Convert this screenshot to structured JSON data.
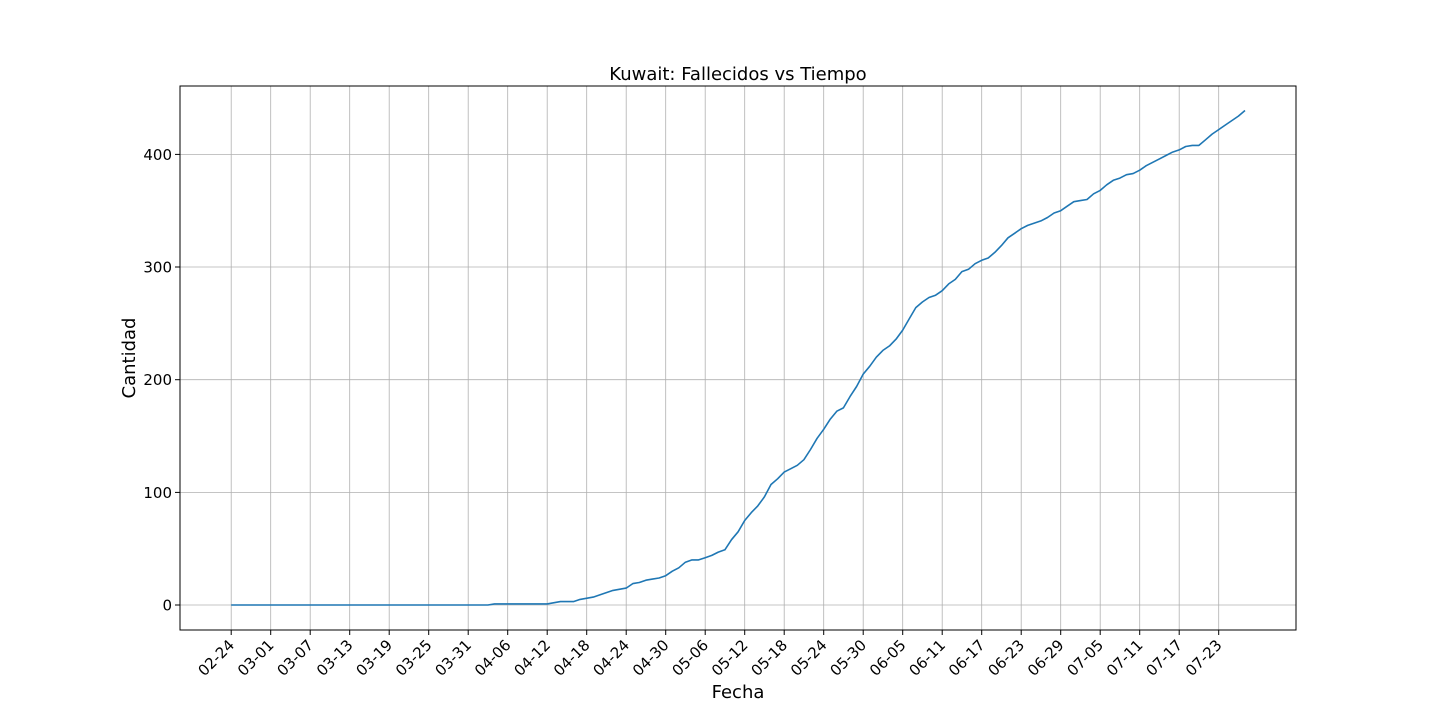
{
  "chart_data": {
    "type": "line",
    "title": "Kuwait: Fallecidos vs Tiempo",
    "xlabel": "Fecha",
    "ylabel": "Cantidad",
    "ylim": [
      -22,
      460
    ],
    "yticks": [
      0,
      100,
      200,
      300,
      400
    ],
    "x_start": "02-24",
    "xticks": [
      "02-24",
      "03-01",
      "03-07",
      "03-13",
      "03-19",
      "03-25",
      "03-31",
      "04-06",
      "04-12",
      "04-18",
      "04-24",
      "04-30",
      "05-06",
      "05-12",
      "05-18",
      "05-24",
      "05-30",
      "06-05",
      "06-11",
      "06-17",
      "06-23",
      "06-29",
      "07-05",
      "07-11",
      "07-17",
      "07-23"
    ],
    "grid": true,
    "series": [
      {
        "color": "#1f77b4",
        "points": [
          [
            "02-24",
            0
          ],
          [
            "04-03",
            0
          ],
          [
            "04-04",
            1
          ],
          [
            "04-12",
            1
          ],
          [
            "04-14",
            3
          ],
          [
            "04-16",
            3
          ],
          [
            "04-17",
            5
          ],
          [
            "04-19",
            7
          ],
          [
            "04-20",
            9
          ],
          [
            "04-22",
            13
          ],
          [
            "04-24",
            15
          ],
          [
            "04-25",
            19
          ],
          [
            "04-26",
            20
          ],
          [
            "04-27",
            22
          ],
          [
            "04-28",
            23
          ],
          [
            "04-29",
            24
          ],
          [
            "04-30",
            26
          ],
          [
            "05-01",
            30
          ],
          [
            "05-02",
            33
          ],
          [
            "05-03",
            38
          ],
          [
            "05-04",
            40
          ],
          [
            "05-05",
            40
          ],
          [
            "05-06",
            42
          ],
          [
            "05-07",
            44
          ],
          [
            "05-08",
            47
          ],
          [
            "05-09",
            49
          ],
          [
            "05-10",
            58
          ],
          [
            "05-11",
            65
          ],
          [
            "05-12",
            75
          ],
          [
            "05-13",
            82
          ],
          [
            "05-14",
            88
          ],
          [
            "05-15",
            96
          ],
          [
            "05-16",
            107
          ],
          [
            "05-17",
            112
          ],
          [
            "05-18",
            118
          ],
          [
            "05-19",
            121
          ],
          [
            "05-20",
            124
          ],
          [
            "05-21",
            129
          ],
          [
            "05-22",
            138
          ],
          [
            "05-23",
            148
          ],
          [
            "05-24",
            156
          ],
          [
            "05-25",
            165
          ],
          [
            "05-26",
            172
          ],
          [
            "05-27",
            175
          ],
          [
            "05-28",
            185
          ],
          [
            "05-29",
            194
          ],
          [
            "05-30",
            205
          ],
          [
            "05-31",
            212
          ],
          [
            "06-01",
            220
          ],
          [
            "06-02",
            226
          ],
          [
            "06-03",
            230
          ],
          [
            "06-04",
            236
          ],
          [
            "06-05",
            244
          ],
          [
            "06-06",
            254
          ],
          [
            "06-07",
            264
          ],
          [
            "06-08",
            269
          ],
          [
            "06-09",
            273
          ],
          [
            "06-10",
            275
          ],
          [
            "06-11",
            279
          ],
          [
            "06-12",
            285
          ],
          [
            "06-13",
            289
          ],
          [
            "06-14",
            296
          ],
          [
            "06-15",
            298
          ],
          [
            "06-16",
            303
          ],
          [
            "06-17",
            306
          ],
          [
            "06-18",
            308
          ],
          [
            "06-19",
            313
          ],
          [
            "06-20",
            319
          ],
          [
            "06-21",
            326
          ],
          [
            "06-22",
            330
          ],
          [
            "06-23",
            334
          ],
          [
            "06-24",
            337
          ],
          [
            "06-25",
            339
          ],
          [
            "06-26",
            341
          ],
          [
            "06-27",
            344
          ],
          [
            "06-28",
            348
          ],
          [
            "06-29",
            350
          ],
          [
            "06-30",
            354
          ],
          [
            "07-01",
            358
          ],
          [
            "07-02",
            359
          ],
          [
            "07-03",
            360
          ],
          [
            "07-04",
            365
          ],
          [
            "07-05",
            368
          ],
          [
            "07-06",
            373
          ],
          [
            "07-07",
            377
          ],
          [
            "07-08",
            379
          ],
          [
            "07-09",
            382
          ],
          [
            "07-10",
            383
          ],
          [
            "07-11",
            386
          ],
          [
            "07-12",
            390
          ],
          [
            "07-13",
            393
          ],
          [
            "07-14",
            396
          ],
          [
            "07-15",
            399
          ],
          [
            "07-16",
            402
          ],
          [
            "07-17",
            404
          ],
          [
            "07-18",
            407
          ],
          [
            "07-19",
            408
          ],
          [
            "07-20",
            408
          ],
          [
            "07-21",
            413
          ],
          [
            "07-22",
            418
          ],
          [
            "07-23",
            422
          ],
          [
            "07-24",
            426
          ],
          [
            "07-25",
            430
          ],
          [
            "07-26",
            434
          ],
          [
            "07-27",
            439
          ]
        ]
      }
    ]
  }
}
